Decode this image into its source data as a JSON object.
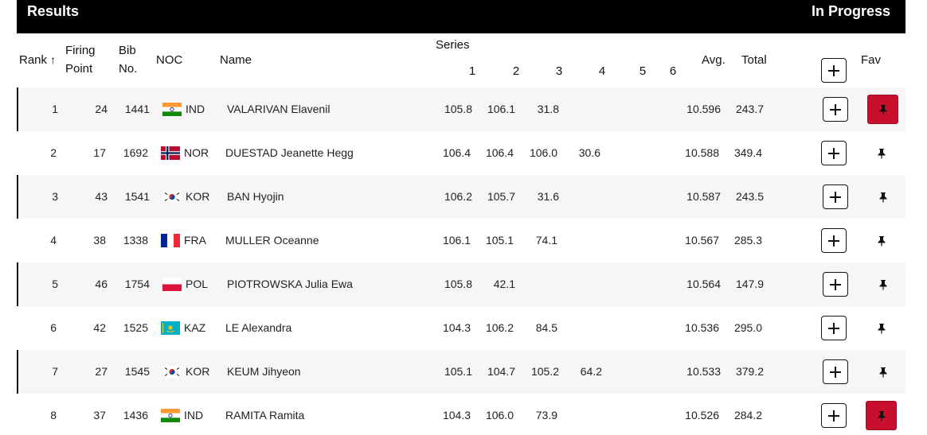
{
  "header": {
    "title": "Results",
    "status": "In Progress"
  },
  "columns": {
    "rank": "Rank",
    "sort_indicator": "↑",
    "firing_point_1": "Firing",
    "firing_point_2": "Point",
    "bib_1": "Bib",
    "bib_2": "No.",
    "noc": "NOC",
    "name": "Name",
    "series": "Series",
    "series_numbers": [
      "1",
      "2",
      "3",
      "4",
      "5",
      "6"
    ],
    "avg": "Avg.",
    "total": "Total",
    "fav": "Fav"
  },
  "icons": {
    "add": "plus-icon",
    "fav": "pin-icon"
  },
  "colors": {
    "header_bg": "#000000",
    "fav_active": "#c8102e",
    "row_alt": "#f6f6f6"
  },
  "rows": [
    {
      "rank": "1",
      "fp": "24",
      "bib": "1441",
      "noc": "IND",
      "flag": "IND",
      "name": "VALARIVAN Elavenil",
      "s1": "105.8",
      "s2": "106.1",
      "s3": "31.8",
      "s4": "",
      "s5": "",
      "s6": "",
      "avg": "10.596",
      "total": "243.7",
      "fav": true
    },
    {
      "rank": "2",
      "fp": "17",
      "bib": "1692",
      "noc": "NOR",
      "flag": "NOR",
      "name": "DUESTAD Jeanette Hegg",
      "s1": "106.4",
      "s2": "106.4",
      "s3": "106.0",
      "s4": "30.6",
      "s5": "",
      "s6": "",
      "avg": "10.588",
      "total": "349.4",
      "fav": false
    },
    {
      "rank": "3",
      "fp": "43",
      "bib": "1541",
      "noc": "KOR",
      "flag": "KOR",
      "name": "BAN Hyojin",
      "s1": "106.2",
      "s2": "105.7",
      "s3": "31.6",
      "s4": "",
      "s5": "",
      "s6": "",
      "avg": "10.587",
      "total": "243.5",
      "fav": false
    },
    {
      "rank": "4",
      "fp": "38",
      "bib": "1338",
      "noc": "FRA",
      "flag": "FRA",
      "name": "MULLER Oceanne",
      "s1": "106.1",
      "s2": "105.1",
      "s3": "74.1",
      "s4": "",
      "s5": "",
      "s6": "",
      "avg": "10.567",
      "total": "285.3",
      "fav": false
    },
    {
      "rank": "5",
      "fp": "46",
      "bib": "1754",
      "noc": "POL",
      "flag": "POL",
      "name": "PIOTROWSKA Julia Ewa",
      "s1": "105.8",
      "s2": "42.1",
      "s3": "",
      "s4": "",
      "s5": "",
      "s6": "",
      "avg": "10.564",
      "total": "147.9",
      "fav": false
    },
    {
      "rank": "6",
      "fp": "42",
      "bib": "1525",
      "noc": "KAZ",
      "flag": "KAZ",
      "name": "LE Alexandra",
      "s1": "104.3",
      "s2": "106.2",
      "s3": "84.5",
      "s4": "",
      "s5": "",
      "s6": "",
      "avg": "10.536",
      "total": "295.0",
      "fav": false
    },
    {
      "rank": "7",
      "fp": "27",
      "bib": "1545",
      "noc": "KOR",
      "flag": "KOR",
      "name": "KEUM Jihyeon",
      "s1": "105.1",
      "s2": "104.7",
      "s3": "105.2",
      "s4": "64.2",
      "s5": "",
      "s6": "",
      "avg": "10.533",
      "total": "379.2",
      "fav": false
    },
    {
      "rank": "8",
      "fp": "37",
      "bib": "1436",
      "noc": "IND",
      "flag": "IND",
      "name": "RAMITA Ramita",
      "s1": "104.3",
      "s2": "106.0",
      "s3": "73.9",
      "s4": "",
      "s5": "",
      "s6": "",
      "avg": "10.526",
      "total": "284.2",
      "fav": true
    }
  ]
}
